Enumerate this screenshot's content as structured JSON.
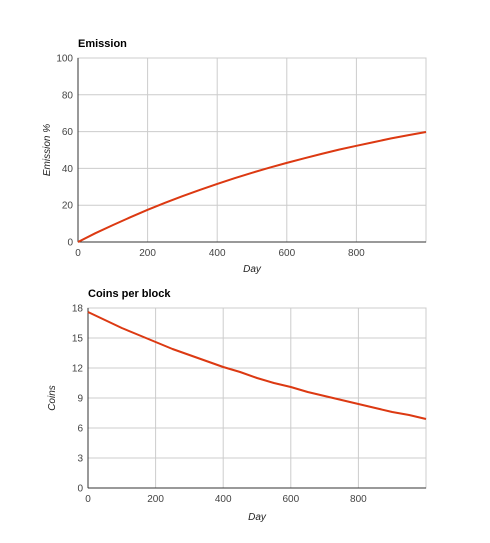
{
  "chart_data": [
    {
      "type": "line",
      "title": "Emission",
      "xlabel": "Day",
      "ylabel": "Emission %",
      "xlim": [
        0,
        1000
      ],
      "ylim": [
        0,
        100
      ],
      "xticks": [
        0,
        200,
        400,
        600,
        800
      ],
      "yticks": [
        0,
        20,
        40,
        60,
        80,
        100
      ],
      "grid": true,
      "color": "#dc3912",
      "series": [
        {
          "x": [
            0,
            50,
            100,
            150,
            200,
            250,
            300,
            350,
            400,
            450,
            500,
            550,
            600,
            650,
            700,
            750,
            800,
            850,
            900,
            950,
            1000
          ],
          "values": [
            0,
            4.8,
            9.2,
            13.4,
            17.5,
            21.3,
            24.9,
            28.3,
            31.6,
            34.7,
            37.6,
            40.4,
            43.0,
            45.5,
            47.9,
            50.2,
            52.3,
            54.3,
            56.3,
            58.1,
            59.8
          ]
        }
      ]
    },
    {
      "type": "line",
      "title": "Coins per block",
      "xlabel": "Day",
      "ylabel": "Coins",
      "xlim": [
        0,
        1000
      ],
      "ylim": [
        0,
        18
      ],
      "xticks": [
        0,
        200,
        400,
        600,
        800
      ],
      "yticks": [
        0,
        3,
        6,
        9,
        12,
        15,
        18
      ],
      "grid": true,
      "color": "#dc3912",
      "series": [
        {
          "x": [
            0,
            50,
            100,
            150,
            200,
            250,
            300,
            350,
            400,
            450,
            500,
            550,
            600,
            650,
            700,
            750,
            800,
            850,
            900,
            950,
            1000
          ],
          "values": [
            17.6,
            16.8,
            16.0,
            15.3,
            14.6,
            13.9,
            13.3,
            12.7,
            12.1,
            11.6,
            11.0,
            10.5,
            10.1,
            9.6,
            9.2,
            8.8,
            8.4,
            8.0,
            7.6,
            7.3,
            6.9
          ]
        }
      ]
    }
  ]
}
